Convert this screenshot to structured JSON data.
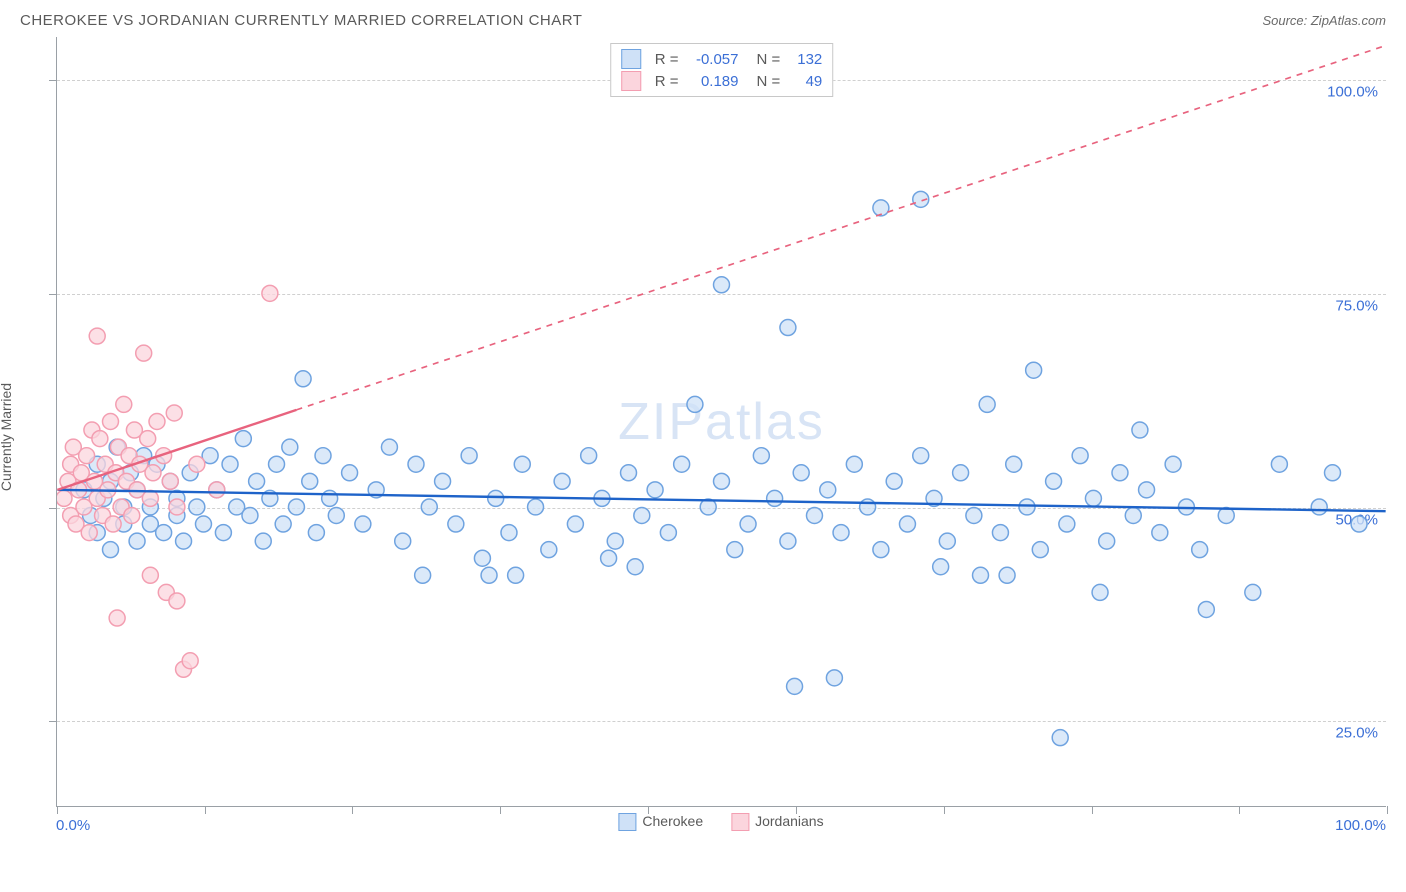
{
  "title": "CHEROKEE VS JORDANIAN CURRENTLY MARRIED CORRELATION CHART",
  "source": "Source: ZipAtlas.com",
  "watermark": "ZIPatlas",
  "ylabel": "Currently Married",
  "chart": {
    "type": "scatter",
    "xlim": [
      0,
      100
    ],
    "ylim": [
      15,
      105
    ],
    "x_min_label": "0.0%",
    "x_max_label": "100.0%",
    "y_ticks": [
      25,
      50,
      75,
      100
    ],
    "y_tick_labels": [
      "25.0%",
      "50.0%",
      "75.0%",
      "100.0%"
    ],
    "x_ticks": [
      0,
      11.1,
      22.2,
      33.3,
      44.4,
      55.6,
      66.7,
      77.8,
      88.9,
      100
    ],
    "grid_color": "#d0d0d0",
    "background_color": "#ffffff",
    "axis_color": "#9aa0a6",
    "marker_radius": 8,
    "marker_stroke_width": 1.5,
    "series": [
      {
        "name": "Cherokee",
        "fill": "#cfe1f7",
        "stroke": "#6fa3e0",
        "fill_opacity": 0.75,
        "R": "-0.057",
        "N": "132",
        "trend": {
          "x1": 0,
          "y1": 52,
          "x2": 100,
          "y2": 49.5,
          "stroke": "#1e63c9",
          "width": 2.4,
          "solid_until_x": 100
        },
        "points": [
          [
            2,
            52
          ],
          [
            2.5,
            49
          ],
          [
            3,
            55
          ],
          [
            3,
            47
          ],
          [
            3.5,
            51
          ],
          [
            4,
            53
          ],
          [
            4,
            45
          ],
          [
            4.5,
            57
          ],
          [
            5,
            50
          ],
          [
            5,
            48
          ],
          [
            5.5,
            54
          ],
          [
            6,
            46
          ],
          [
            6,
            52
          ],
          [
            6.5,
            56
          ],
          [
            7,
            50
          ],
          [
            7,
            48
          ],
          [
            7.5,
            55
          ],
          [
            8,
            47
          ],
          [
            8.5,
            53
          ],
          [
            9,
            51
          ],
          [
            9,
            49
          ],
          [
            9.5,
            46
          ],
          [
            10,
            54
          ],
          [
            10.5,
            50
          ],
          [
            11,
            48
          ],
          [
            11.5,
            56
          ],
          [
            12,
            52
          ],
          [
            12.5,
            47
          ],
          [
            13,
            55
          ],
          [
            13.5,
            50
          ],
          [
            14,
            58
          ],
          [
            14.5,
            49
          ],
          [
            15,
            53
          ],
          [
            15.5,
            46
          ],
          [
            16,
            51
          ],
          [
            16.5,
            55
          ],
          [
            17,
            48
          ],
          [
            17.5,
            57
          ],
          [
            18,
            50
          ],
          [
            18.5,
            65
          ],
          [
            19,
            53
          ],
          [
            19.5,
            47
          ],
          [
            20,
            56
          ],
          [
            20.5,
            51
          ],
          [
            21,
            49
          ],
          [
            22,
            54
          ],
          [
            23,
            48
          ],
          [
            24,
            52
          ],
          [
            25,
            57
          ],
          [
            26,
            46
          ],
          [
            27,
            55
          ],
          [
            27.5,
            42
          ],
          [
            28,
            50
          ],
          [
            29,
            53
          ],
          [
            30,
            48
          ],
          [
            31,
            56
          ],
          [
            32,
            44
          ],
          [
            32.5,
            42
          ],
          [
            33,
            51
          ],
          [
            34,
            47
          ],
          [
            34.5,
            42
          ],
          [
            35,
            55
          ],
          [
            36,
            50
          ],
          [
            37,
            45
          ],
          [
            38,
            53
          ],
          [
            39,
            48
          ],
          [
            40,
            56
          ],
          [
            41,
            51
          ],
          [
            41.5,
            44
          ],
          [
            42,
            46
          ],
          [
            43,
            54
          ],
          [
            43.5,
            43
          ],
          [
            44,
            49
          ],
          [
            45,
            52
          ],
          [
            46,
            47
          ],
          [
            47,
            55
          ],
          [
            48,
            62
          ],
          [
            49,
            50
          ],
          [
            50,
            53
          ],
          [
            50,
            76
          ],
          [
            51,
            45
          ],
          [
            52,
            48
          ],
          [
            53,
            56
          ],
          [
            54,
            51
          ],
          [
            55,
            46
          ],
          [
            55,
            71
          ],
          [
            55.5,
            29
          ],
          [
            56,
            54
          ],
          [
            57,
            49
          ],
          [
            58,
            52
          ],
          [
            58.5,
            30
          ],
          [
            59,
            47
          ],
          [
            60,
            55
          ],
          [
            61,
            50
          ],
          [
            62,
            45
          ],
          [
            62,
            85
          ],
          [
            63,
            53
          ],
          [
            64,
            48
          ],
          [
            65,
            56
          ],
          [
            65,
            86
          ],
          [
            66,
            51
          ],
          [
            66.5,
            43
          ],
          [
            67,
            46
          ],
          [
            68,
            54
          ],
          [
            69,
            49
          ],
          [
            69.5,
            42
          ],
          [
            70,
            62
          ],
          [
            71,
            47
          ],
          [
            71.5,
            42
          ],
          [
            72,
            55
          ],
          [
            73,
            50
          ],
          [
            73.5,
            66
          ],
          [
            74,
            45
          ],
          [
            75,
            53
          ],
          [
            75.5,
            23
          ],
          [
            76,
            48
          ],
          [
            77,
            56
          ],
          [
            78,
            51
          ],
          [
            78.5,
            40
          ],
          [
            79,
            46
          ],
          [
            80,
            54
          ],
          [
            81,
            49
          ],
          [
            81.5,
            59
          ],
          [
            82,
            52
          ],
          [
            83,
            47
          ],
          [
            84,
            55
          ],
          [
            85,
            50
          ],
          [
            86,
            45
          ],
          [
            86.5,
            38
          ],
          [
            88,
            49
          ],
          [
            90,
            40
          ],
          [
            92,
            55
          ],
          [
            95,
            50
          ],
          [
            96,
            54
          ],
          [
            98,
            48
          ]
        ]
      },
      {
        "name": "Jordanians",
        "fill": "#fbd5dd",
        "stroke": "#f39eb1",
        "fill_opacity": 0.75,
        "R": "0.189",
        "N": "49",
        "trend": {
          "x1": 0,
          "y1": 52,
          "x2": 100,
          "y2": 104,
          "stroke": "#e8637e",
          "width": 2.4,
          "solid_until_x": 18
        },
        "points": [
          [
            0.5,
            51
          ],
          [
            0.8,
            53
          ],
          [
            1,
            55
          ],
          [
            1,
            49
          ],
          [
            1.2,
            57
          ],
          [
            1.4,
            48
          ],
          [
            1.6,
            52
          ],
          [
            1.8,
            54
          ],
          [
            2,
            50
          ],
          [
            2.2,
            56
          ],
          [
            2.4,
            47
          ],
          [
            2.6,
            59
          ],
          [
            2.8,
            53
          ],
          [
            3,
            51
          ],
          [
            3.2,
            58
          ],
          [
            3.4,
            49
          ],
          [
            3.6,
            55
          ],
          [
            3.8,
            52
          ],
          [
            4,
            60
          ],
          [
            4.2,
            48
          ],
          [
            4.4,
            54
          ],
          [
            4.6,
            57
          ],
          [
            4.8,
            50
          ],
          [
            5,
            62
          ],
          [
            5.2,
            53
          ],
          [
            5.4,
            56
          ],
          [
            5.6,
            49
          ],
          [
            5.8,
            59
          ],
          [
            6,
            52
          ],
          [
            6.2,
            55
          ],
          [
            3,
            70
          ],
          [
            6.5,
            68
          ],
          [
            6.8,
            58
          ],
          [
            7,
            51
          ],
          [
            7.2,
            54
          ],
          [
            4.5,
            37
          ],
          [
            7.5,
            60
          ],
          [
            7,
            42
          ],
          [
            8,
            56
          ],
          [
            8.2,
            40
          ],
          [
            8.5,
            53
          ],
          [
            8.8,
            61
          ],
          [
            9,
            50
          ],
          [
            9,
            39
          ],
          [
            9.5,
            31
          ],
          [
            10,
            32
          ],
          [
            10.5,
            55
          ],
          [
            12,
            52
          ],
          [
            16,
            75
          ]
        ]
      }
    ]
  },
  "legend": {
    "items": [
      {
        "label": "Cherokee",
        "fill": "#cfe1f7",
        "stroke": "#6fa3e0"
      },
      {
        "label": "Jordanians",
        "fill": "#fbd5dd",
        "stroke": "#f39eb1"
      }
    ]
  }
}
